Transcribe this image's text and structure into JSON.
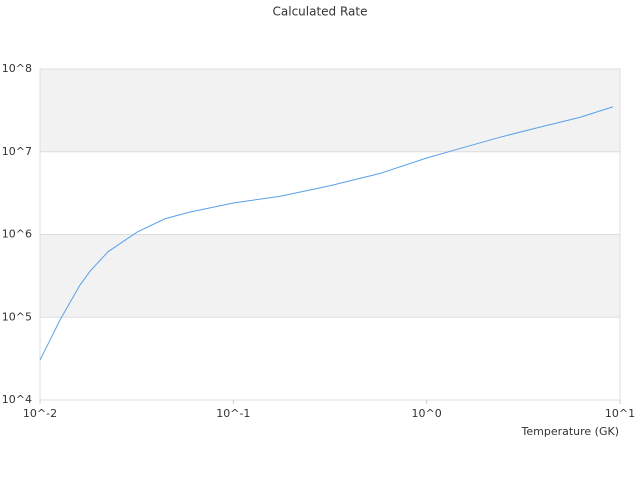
{
  "chart_data": {
    "type": "line",
    "title": "Calculated Rate",
    "x_label": "Temperature (GK)",
    "x": [
      0.01,
      0.01127,
      0.0127,
      0.0161,
      0.0182,
      0.0225,
      0.0318,
      0.0443,
      0.0598,
      0.1,
      0.175,
      0.318,
      0.578,
      1,
      1.5,
      2.4,
      3.9,
      6.2,
      9.2
    ],
    "series": [
      {
        "color": "#5aa0e6",
        "values": [
          30400,
          53000,
          93000,
          245000,
          363000,
          620000,
          1070000,
          1550000,
          1870000,
          2400000,
          2900000,
          3900000,
          5500000,
          8400000,
          11000000,
          15000000,
          20000000,
          26000000,
          35000000
        ]
      }
    ],
    "xlim": [
      0.01,
      10
    ],
    "ylim": [
      10000,
      100000000
    ],
    "xticks": [
      {
        "value": 0.01,
        "label": "10^-2"
      },
      {
        "value": 0.1,
        "label": "10^-1"
      },
      {
        "value": 1,
        "label": "10^0"
      },
      {
        "value": 10,
        "label": "10^1"
      }
    ],
    "yticks": [
      {
        "value": 10000,
        "label": "10^4"
      },
      {
        "value": 100000,
        "label": "10^5"
      },
      {
        "value": 1000000,
        "label": "10^6"
      },
      {
        "value": 10000000,
        "label": "10^7"
      },
      {
        "value": 100000000,
        "label": "10^8"
      }
    ],
    "log_x": true,
    "log_y": true,
    "grid": true
  }
}
